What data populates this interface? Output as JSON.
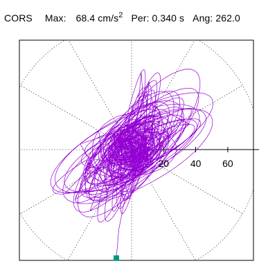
{
  "header": {
    "station": "CORS",
    "max_label": "Max:",
    "max_value": "68.4",
    "max_unit": "cm/s",
    "max_unit_exp": "2",
    "period_label": "Per:",
    "period_value": "0.340 s",
    "angle_label": "Ang: 262.0"
  },
  "chart_data": {
    "type": "scatter",
    "title": "",
    "xlabel": "",
    "ylabel": "",
    "radial_ticks": [
      "20",
      "40",
      "60"
    ],
    "radial_tick_values": [
      20,
      40,
      60
    ],
    "rmax": 80,
    "xlim": [
      -73,
      73
    ],
    "ylim": [
      -68.4,
      73
    ],
    "grid": "dotted polar grid (circles and 30-degree spokes)",
    "series": [
      {
        "trace_color": "#9400d3",
        "end_marker_color": "#009977",
        "end_point": [
          -9.5,
          -67.7
        ]
      }
    ]
  }
}
